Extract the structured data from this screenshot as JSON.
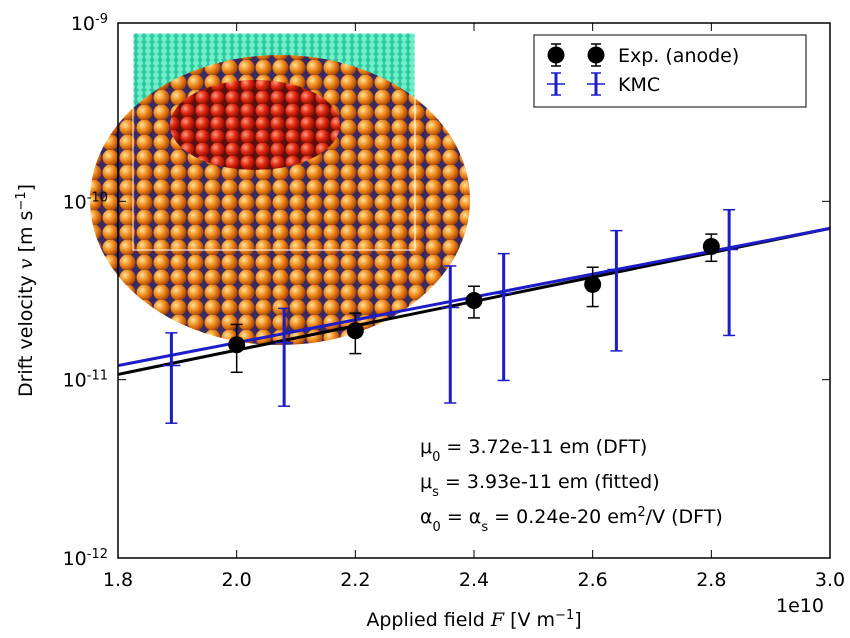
{
  "chart_data": {
    "type": "scatter",
    "xlim": [
      1.8,
      3.0
    ],
    "xticks": [
      1.8,
      {
        "value": 2,
        "label": "2.0"
      },
      2.2,
      2.4,
      2.6,
      2.8,
      {
        "value": 3,
        "label": "3.0"
      }
    ],
    "x_offset_label": "1e10",
    "ylim": [
      1e-12,
      1e-09
    ],
    "yscale": "log",
    "yticks": [
      {
        "value": 1e-12,
        "label": "10",
        "exponent": "-12"
      },
      {
        "value": 1e-11,
        "label": "10",
        "exponent": "-11"
      },
      {
        "value": 1e-10,
        "label": "10",
        "exponent": "-10"
      },
      {
        "value": 1e-09,
        "label": "10",
        "exponent": "-9"
      }
    ],
    "xlabel": [
      {
        "text": "Applied field "
      },
      {
        "text": "F",
        "style": "italic"
      },
      {
        "text": " [V m"
      },
      {
        "text": "−1",
        "style": "sup"
      },
      {
        "text": "]"
      }
    ],
    "ylabel": [
      {
        "text": "Drift velocity "
      },
      {
        "text": "v",
        "style": "italic"
      },
      {
        "text": " [m s"
      },
      {
        "text": "−1",
        "style": "sup"
      },
      {
        "text": "]"
      }
    ],
    "legend_loc": "upper right",
    "series": [
      {
        "name": "Exp. (anode)",
        "color": "#000000",
        "marker": "circle",
        "x": [
          2.0,
          2.2,
          2.4,
          2.6,
          2.8
        ],
        "values": [
          1.57e-11,
          1.88e-11,
          2.78e-11,
          3.42e-11,
          5.58e-11
        ],
        "errors": [
          4.7e-12,
          4.8e-12,
          5.6e-12,
          8.5e-12,
          9.7e-12
        ]
      },
      {
        "name": "KMC",
        "color": "#1c1cc8",
        "marker": "hline",
        "x": [
          1.89,
          2.08,
          2.36,
          2.45,
          2.64,
          2.83
        ],
        "values": [
          1.2e-11,
          1.61e-11,
          2.54e-11,
          3.04e-11,
          4.15e-11,
          5.37e-11
        ],
        "errors": [
          6.3e-12,
          9e-12,
          1.8e-11,
          2.05e-11,
          2.7e-11,
          3.6e-11
        ]
      }
    ],
    "fit_lines": [
      {
        "color": "#000000",
        "x": [
          1.8,
          3.0
        ],
        "values": [
          1.07e-11,
          7.05e-11
        ]
      },
      {
        "color": "#1c1cc8",
        "x": [
          1.8,
          3.0
        ],
        "values": [
          1.2e-11,
          7.05e-11
        ]
      }
    ],
    "annotations": [
      [
        {
          "text": "μ"
        },
        {
          "text": "0",
          "style": "sub"
        },
        {
          "text": " = 3.72e-11 em (DFT)"
        }
      ],
      [
        {
          "text": "μ"
        },
        {
          "text": "s",
          "style": "sub"
        },
        {
          "text": " = 3.93e-11 em (fitted)"
        }
      ],
      [
        {
          "text": "α"
        },
        {
          "text": "0",
          "style": "sub"
        },
        {
          "text": " = α"
        },
        {
          "text": "s",
          "style": "sub"
        },
        {
          "text": " = 0.24e-20 em"
        },
        {
          "text": "2",
          "style": "sup"
        },
        {
          "text": "/V (DFT)"
        }
      ]
    ]
  }
}
